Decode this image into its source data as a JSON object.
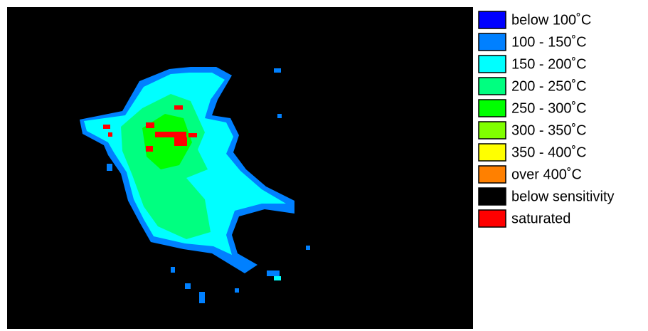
{
  "legend": [
    {
      "label": "below 100˚C",
      "color": "#0000ff"
    },
    {
      "label": "100 - 150˚C",
      "color": "#0080ff"
    },
    {
      "label": "150 - 200˚C",
      "color": "#00ffff"
    },
    {
      "label": "200 - 250˚C",
      "color": "#00ff80"
    },
    {
      "label": "250 - 300˚C",
      "color": "#00ff00"
    },
    {
      "label": "300 - 350˚C",
      "color": "#80ff00"
    },
    {
      "label": "350 - 400˚C",
      "color": "#ffff00"
    },
    {
      "label": "over 400˚C",
      "color": "#ff8000"
    },
    {
      "label": "below sensitivity",
      "color": "#000000"
    },
    {
      "label": "saturated",
      "color": "#ff0000"
    }
  ]
}
